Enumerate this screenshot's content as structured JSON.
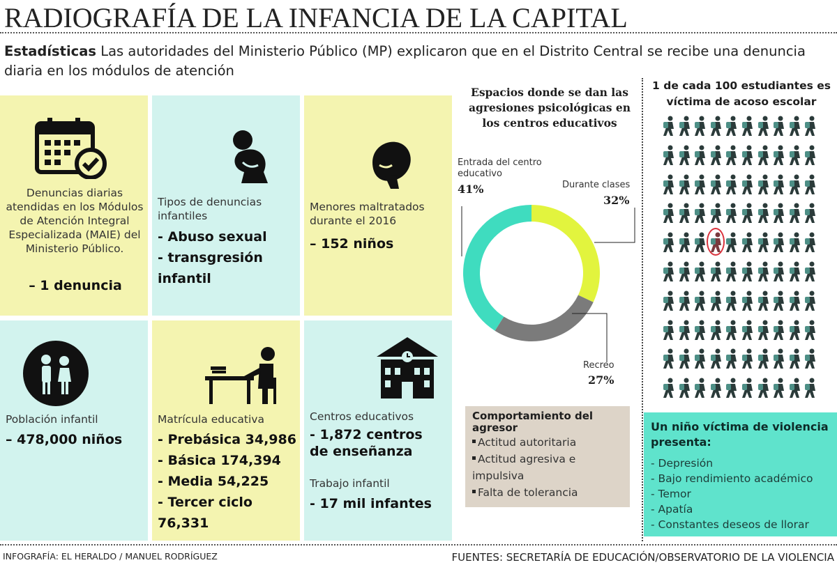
{
  "title": "RADIOGRAFÍA DE LA INFANCIA DE LA CAPITAL",
  "intro": {
    "lead": "Estadísticas",
    "text": " Las autoridades del Ministerio Público (MP) explicaron que en el Distrito Central se recibe una denuncia diaria en los módulos de atención"
  },
  "cells": [
    {
      "icon": "calendar-check-icon",
      "label": "Denuncias diarias atendidas en los Módulos de Atención Integral Especializada (MAIE) del Ministerio Público.",
      "values": [
        "– 1 denuncia"
      ]
    },
    {
      "icon": "crouching-child-icon",
      "label": "Tipos de denuncias infantiles",
      "values": [
        "- Abuso sexual",
        "- transgresión infantil"
      ]
    },
    {
      "icon": "crying-face-icon",
      "label": "Menores maltratados durante el 2016",
      "values": [
        "– 152 niños"
      ]
    },
    {
      "icon": "children-backpack-icon",
      "label": "Población infantil",
      "values": [
        "– 478,000 niños"
      ]
    },
    {
      "icon": "student-desk-icon",
      "label": "Matrícula educativa",
      "values": [
        "- Prebásica 34,986",
        "- Básica 174,394",
        "- Media 54,225",
        "- Tercer ciclo 76,331"
      ]
    },
    {
      "icon": "school-building-icon",
      "label": "Centros educativos",
      "values": [
        "- 1,872 centros de enseñanza"
      ],
      "label2": "Trabajo infantil",
      "values2": [
        "- 17 mil infantes"
      ]
    }
  ],
  "chart_data": {
    "type": "pie",
    "donut": true,
    "title": "Espacios donde se dan las agresiones psicológicas en los centros educativos",
    "slices": [
      {
        "name": "Durante clases",
        "value": 32,
        "label": "32%",
        "color": "#e2f43e"
      },
      {
        "name": "Recreo",
        "value": 27,
        "label": "27%",
        "color": "#7b7b7b"
      },
      {
        "name": "Entrada del centro educativo",
        "value": 41,
        "label": "41%",
        "color": "#3fdcbf"
      }
    ]
  },
  "behavior": {
    "title": "Comportamiento del agresor",
    "items": [
      "Actitud autoritaria",
      "Actitud agresiva e impulsiva",
      "Falta de tolerancia"
    ]
  },
  "bullying": {
    "title": "1 de cada 100 estudiantes es víctima de acoso escolar",
    "total": 100,
    "highlighted": 1,
    "icon": "walking-student-icon",
    "highlight_color": "#d9323c"
  },
  "victim": {
    "title": "Un niño víctima de violencia presenta:",
    "items": [
      "- Depresión",
      "- Bajo rendimiento académico",
      "- Temor",
      "- Apatía",
      "- Constantes deseos de llorar"
    ]
  },
  "footer": {
    "left": "INFOGRAFÍA: EL HERALDO / MANUEL RODRÍGUEZ",
    "right": "FUENTES: SECRETARÍA DE EDUCACIÓN/OBSERVATORIO DE LA VIOLENCIA"
  }
}
